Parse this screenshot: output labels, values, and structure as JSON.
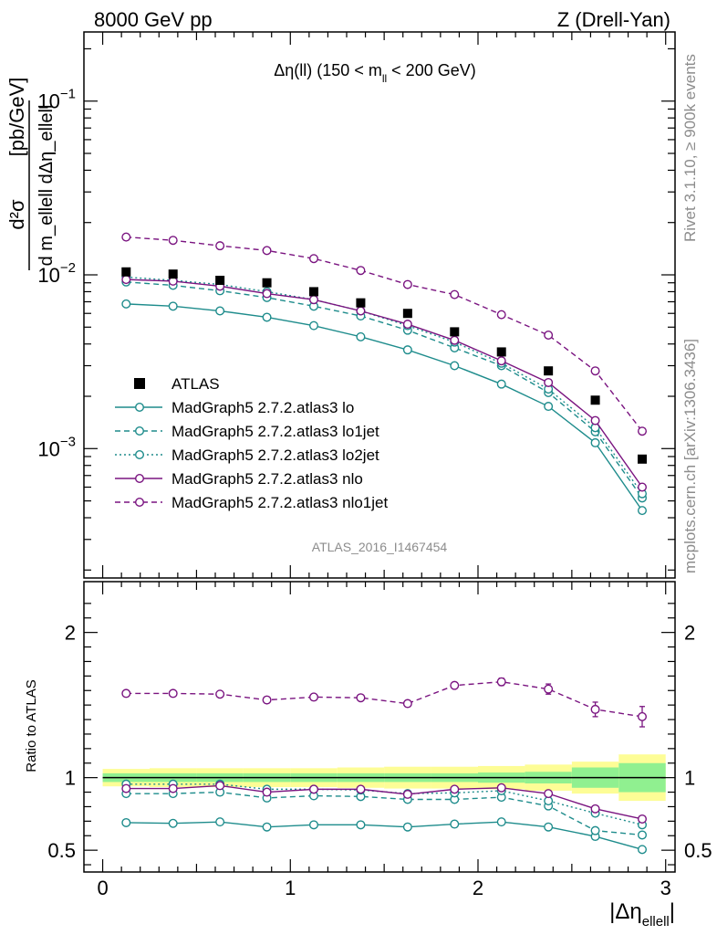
{
  "header": {
    "left": "8000 GeV pp",
    "right": "Z (Drell-Yan)"
  },
  "side_labels": {
    "rivet": "Rivet 3.1.10, ≥ 900k events",
    "mcplots": "mcplots.cern.ch [arXiv:1306.3436]"
  },
  "analysis_id": "ATLAS_2016_I1467454",
  "main_title": {
    "prefix": "Δη(ll) (150 < m",
    "sub": "ll",
    "suffix": " < 200 GeV)"
  },
  "y_axis_main": {
    "label_num": "d²σ",
    "label_den": "d m_ellell dΔη_ellell",
    "label_unit": "[pb/GeV]"
  },
  "ratio_axis": {
    "label": "Ratio to ATLAS"
  },
  "x_axis_label": {
    "main": "|Δη",
    "sub": "ellell",
    "close": "|"
  },
  "colors": {
    "atlas": "#000000",
    "lo": "#1e8c8c",
    "nlo": "#7a1480",
    "band_inner": "#90f090",
    "band_outer": "#fdfd96"
  },
  "chart_data": [
    {
      "type": "line",
      "panel": "main",
      "title": "Δη(ll) (150 < m_ll < 200 GeV)",
      "xlabel": "|Δη_ellell|",
      "ylabel": "d²σ / d m_ellell dΔη_ellell [pb/GeV]",
      "yscale": "log",
      "xlim": [
        -0.1,
        3.05
      ],
      "ylim": [
        0.00018,
        0.25
      ],
      "y_ticks": [
        {
          "value": 0.1,
          "base": "10",
          "exp": "−1"
        },
        {
          "value": 0.01,
          "base": "10",
          "exp": "−2"
        },
        {
          "value": 0.001,
          "base": "10",
          "exp": "−3"
        }
      ],
      "x": [
        0.125,
        0.375,
        0.625,
        0.875,
        1.125,
        1.375,
        1.625,
        1.875,
        2.125,
        2.375,
        2.625,
        2.875
      ],
      "series": [
        {
          "name": "ATLAS",
          "key": "atlas",
          "marker": "square",
          "values": [
            0.0104,
            0.0101,
            0.0093,
            0.009,
            0.008,
            0.0069,
            0.006,
            0.0047,
            0.0036,
            0.0028,
            0.0019,
            0.00087
          ]
        },
        {
          "name": "MadGraph5 2.7.2.atlas3 lo",
          "key": "lo",
          "dash": "solid",
          "values": [
            0.0068,
            0.0066,
            0.0062,
            0.0057,
            0.0051,
            0.0044,
            0.0037,
            0.003,
            0.00235,
            0.00175,
            0.00108,
            0.00044
          ]
        },
        {
          "name": "MadGraph5 2.7.2.atlas3 lo1jet",
          "key": "lo1jet",
          "dash": "dashed",
          "values": [
            0.0091,
            0.0087,
            0.0081,
            0.0074,
            0.0066,
            0.0058,
            0.0048,
            0.0038,
            0.003,
            0.0021,
            0.00125,
            0.00052
          ]
        },
        {
          "name": "MadGraph5 2.7.2.atlas3 lo2jet",
          "key": "lo2jet",
          "dash": "dotted",
          "values": [
            0.0097,
            0.0093,
            0.0088,
            0.008,
            0.0072,
            0.0062,
            0.0051,
            0.0041,
            0.0031,
            0.0022,
            0.00132,
            0.00055
          ]
        },
        {
          "name": "MadGraph5 2.7.2.atlas3 nlo",
          "key": "nlo",
          "dash": "solid",
          "values": [
            0.0094,
            0.0092,
            0.0086,
            0.0078,
            0.0072,
            0.0062,
            0.0052,
            0.0042,
            0.0032,
            0.0024,
            0.00145,
            0.0006
          ]
        },
        {
          "name": "MadGraph5 2.7.2.atlas3 nlo1jet",
          "key": "nlo1jet",
          "dash": "dashed",
          "values": [
            0.0165,
            0.0158,
            0.0147,
            0.0138,
            0.0124,
            0.0106,
            0.0088,
            0.0077,
            0.0059,
            0.0045,
            0.0028,
            0.00126
          ]
        }
      ]
    },
    {
      "type": "line",
      "panel": "ratio",
      "ylabel": "Ratio to ATLAS",
      "xlabel": "|Δη_ellell|",
      "xlim": [
        -0.1,
        3.05
      ],
      "ylim": [
        0.35,
        2.35
      ],
      "y_ticks": [
        0.5,
        1,
        2
      ],
      "y_tick_labels": [
        "0.5",
        "1",
        "2"
      ],
      "x_ticks": [
        0,
        1,
        2,
        3
      ],
      "x_tick_labels": [
        "0",
        "1",
        "2",
        "3"
      ],
      "x": [
        0.125,
        0.375,
        0.625,
        0.875,
        1.125,
        1.375,
        1.625,
        1.875,
        2.125,
        2.375,
        2.625,
        2.875
      ],
      "bin_edges": [
        0,
        0.25,
        0.5,
        0.75,
        1.0,
        1.25,
        1.5,
        1.75,
        2.0,
        2.25,
        2.5,
        2.75,
        3.0
      ],
      "band_inner_halfwidth": [
        0.03,
        0.03,
        0.03,
        0.03,
        0.03,
        0.03,
        0.03,
        0.03,
        0.035,
        0.04,
        0.07,
        0.1
      ],
      "band_outer_halfwidth": [
        0.06,
        0.065,
        0.065,
        0.065,
        0.065,
        0.07,
        0.075,
        0.075,
        0.08,
        0.09,
        0.11,
        0.16
      ],
      "series": [
        {
          "name": "MadGraph5 2.7.2.atlas3 lo",
          "key": "lo",
          "dash": "solid",
          "values": [
            0.69,
            0.685,
            0.695,
            0.66,
            0.675,
            0.675,
            0.66,
            0.68,
            0.695,
            0.66,
            0.595,
            0.505
          ]
        },
        {
          "name": "MadGraph5 2.7.2.atlas3 lo1jet",
          "key": "lo1jet",
          "dash": "dashed",
          "values": [
            0.89,
            0.89,
            0.9,
            0.86,
            0.875,
            0.87,
            0.85,
            0.85,
            0.865,
            0.805,
            0.635,
            0.605
          ]
        },
        {
          "name": "MadGraph5 2.7.2.atlas3 lo2jet",
          "key": "lo2jet",
          "dash": "dotted",
          "values": [
            0.955,
            0.955,
            0.955,
            0.92,
            0.92,
            0.915,
            0.89,
            0.895,
            0.91,
            0.84,
            0.755,
            0.675
          ]
        },
        {
          "name": "MadGraph5 2.7.2.atlas3 nlo",
          "key": "nlo",
          "dash": "solid",
          "values": [
            0.925,
            0.925,
            0.945,
            0.9,
            0.92,
            0.92,
            0.885,
            0.92,
            0.93,
            0.89,
            0.785,
            0.715
          ]
        },
        {
          "name": "MadGraph5 2.7.2.atlas3 nlo1jet",
          "key": "nlo1jet",
          "dash": "dashed",
          "values": [
            1.58,
            1.58,
            1.575,
            1.535,
            1.555,
            1.55,
            1.51,
            1.635,
            1.66,
            1.61,
            1.47,
            1.42
          ],
          "errors": [
            0.015,
            0.015,
            0.015,
            0.015,
            0.015,
            0.015,
            0.015,
            0.02,
            0.025,
            0.035,
            0.05,
            0.07
          ]
        }
      ]
    }
  ]
}
